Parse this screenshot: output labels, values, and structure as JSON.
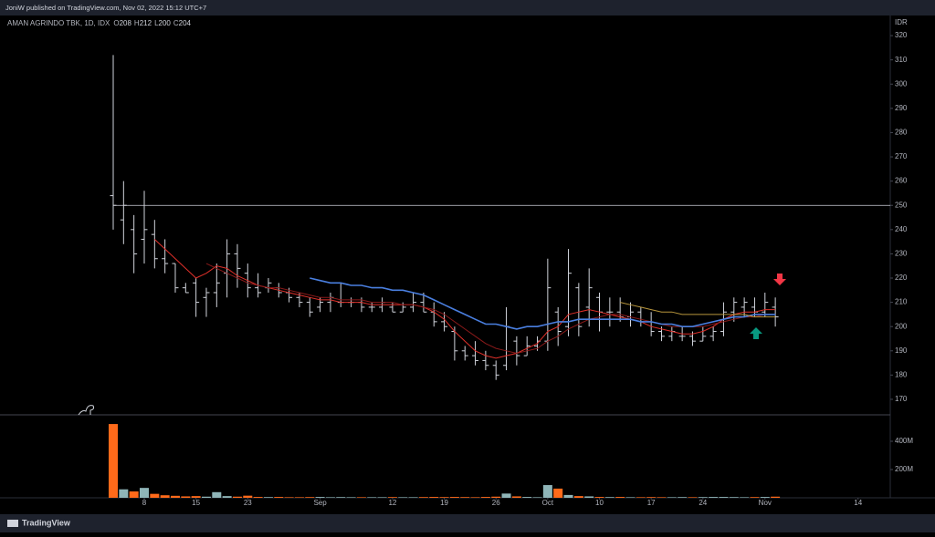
{
  "header": {
    "publisher": "JoniW published on TradingView.com, Nov 02, 2022 15:12 UTC+7",
    "footer_brand": "TradingView"
  },
  "chart_data": {
    "type": "ohlc",
    "title": "AMAN AGRINDO TBK, 1D, IDX",
    "legend_ohlc": [
      {
        "label": "O",
        "value": 208
      },
      {
        "label": "H",
        "value": 212
      },
      {
        "label": "L",
        "value": 200
      },
      {
        "label": "C",
        "value": 204
      }
    ],
    "currency_label": "IDR",
    "bar_color": "#d1d4dc",
    "up_color": "#8fb5b8",
    "down_color": "#ff6a1a",
    "level_color": "#d1d4dc",
    "levels": [
      250
    ],
    "ylim": [
      163.6,
      328.3
    ],
    "yticks": [
      170,
      180,
      190,
      200,
      210,
      220,
      230,
      240,
      250,
      260,
      270,
      280,
      290,
      300,
      310,
      320
    ],
    "xticks": [
      {
        "value": 3,
        "label": "8"
      },
      {
        "value": 8,
        "label": "15"
      },
      {
        "value": 13,
        "label": "23"
      },
      {
        "value": 20,
        "label": "Sep"
      },
      {
        "value": 27,
        "label": "12"
      },
      {
        "value": 32,
        "label": "19"
      },
      {
        "value": 37,
        "label": "26"
      },
      {
        "value": 42,
        "label": "Oct"
      },
      {
        "value": 47,
        "label": "10"
      },
      {
        "value": 52,
        "label": "17"
      },
      {
        "value": 57,
        "label": "24"
      },
      {
        "value": 63,
        "label": "Nov"
      },
      {
        "value": 72,
        "label": "14"
      }
    ],
    "open": [
      254,
      244,
      240,
      236,
      238,
      228,
      226,
      216,
      218,
      212,
      214,
      222,
      230,
      222,
      216,
      216,
      216,
      214,
      212,
      210,
      208,
      210,
      210,
      210,
      210,
      208,
      208,
      208,
      206,
      208,
      210,
      206,
      202,
      198,
      190,
      188,
      186,
      184,
      184,
      194,
      188,
      192,
      194,
      206,
      200,
      216,
      208,
      212,
      206,
      206,
      204,
      206,
      202,
      198,
      196,
      196,
      196,
      194,
      196,
      198,
      206,
      208,
      208,
      206,
      208
    ],
    "high": [
      312,
      260,
      246,
      256,
      244,
      236,
      226,
      218,
      220,
      216,
      226,
      236,
      234,
      226,
      222,
      220,
      218,
      216,
      214,
      212,
      212,
      214,
      218,
      212,
      212,
      210,
      212,
      210,
      210,
      214,
      214,
      210,
      206,
      200,
      192,
      194,
      190,
      186,
      208,
      196,
      196,
      196,
      228,
      208,
      232,
      218,
      224,
      214,
      212,
      212,
      210,
      208,
      206,
      200,
      200,
      200,
      198,
      200,
      200,
      210,
      212,
      212,
      212,
      214,
      212
    ],
    "low": [
      240,
      234,
      222,
      226,
      224,
      222,
      214,
      214,
      204,
      204,
      208,
      212,
      216,
      212,
      212,
      214,
      212,
      210,
      208,
      204,
      206,
      206,
      208,
      208,
      206,
      206,
      206,
      206,
      206,
      206,
      206,
      200,
      198,
      186,
      186,
      184,
      182,
      178,
      182,
      184,
      188,
      190,
      190,
      192,
      196,
      196,
      200,
      198,
      200,
      202,
      200,
      200,
      196,
      194,
      194,
      194,
      192,
      194,
      194,
      196,
      202,
      204,
      204,
      204,
      200
    ],
    "close": [
      250,
      250,
      230,
      240,
      228,
      226,
      216,
      214,
      210,
      214,
      218,
      230,
      224,
      216,
      214,
      218,
      214,
      212,
      210,
      206,
      210,
      212,
      210,
      210,
      208,
      208,
      210,
      206,
      208,
      210,
      206,
      202,
      200,
      190,
      188,
      186,
      184,
      180,
      200,
      188,
      192,
      194,
      216,
      198,
      222,
      200,
      216,
      206,
      206,
      204,
      206,
      202,
      198,
      196,
      198,
      196,
      194,
      196,
      198,
      206,
      210,
      210,
      206,
      210,
      204
    ],
    "lines": [
      {
        "color": "#e0302a",
        "values": [
          null,
          null,
          null,
          null,
          236,
          232,
          228,
          224,
          220,
          222,
          225,
          224,
          221,
          219,
          217,
          216,
          215,
          214,
          213,
          212,
          211,
          211,
          210,
          210,
          210,
          209,
          209,
          209,
          209,
          209,
          208,
          206,
          203,
          198,
          194,
          190,
          188,
          187,
          188,
          189,
          191,
          193,
          198,
          200,
          205,
          206,
          207,
          206,
          205,
          204,
          203,
          202,
          200,
          199,
          198,
          197,
          197,
          198,
          200,
          203,
          205,
          206,
          206,
          207,
          207
        ]
      },
      {
        "color": "#8b1a1a",
        "values": [
          null,
          null,
          null,
          null,
          null,
          null,
          null,
          null,
          null,
          226,
          224,
          222,
          220,
          218,
          217,
          216,
          216,
          215,
          214,
          213,
          212,
          212,
          211,
          211,
          211,
          210,
          210,
          210,
          209,
          209,
          208,
          207,
          205,
          202,
          199,
          196,
          193,
          191,
          190,
          189,
          190,
          191,
          194,
          196,
          199,
          201,
          203,
          204,
          205,
          205,
          204,
          203,
          202,
          201,
          200,
          200,
          200,
          200,
          201,
          202,
          203,
          204,
          204,
          205,
          205
        ]
      },
      {
        "color": "#4a7fe0",
        "values": [
          null,
          null,
          null,
          null,
          null,
          null,
          null,
          null,
          null,
          null,
          null,
          null,
          null,
          null,
          null,
          null,
          null,
          null,
          null,
          220,
          219,
          218,
          218,
          217,
          217,
          216,
          216,
          215,
          215,
          214,
          213,
          211,
          209,
          207,
          205,
          203,
          201,
          201,
          200,
          199,
          200,
          200,
          201,
          202,
          202,
          203,
          203,
          203,
          203,
          203,
          203,
          202,
          202,
          201,
          201,
          200,
          200,
          201,
          202,
          203,
          204,
          204,
          205,
          205,
          205
        ]
      },
      {
        "color": "#b8963c",
        "values": [
          null,
          null,
          null,
          null,
          null,
          null,
          null,
          null,
          null,
          null,
          null,
          null,
          null,
          null,
          null,
          null,
          null,
          null,
          null,
          null,
          null,
          null,
          null,
          null,
          null,
          null,
          null,
          null,
          null,
          null,
          null,
          null,
          null,
          null,
          null,
          null,
          null,
          null,
          null,
          null,
          null,
          null,
          null,
          null,
          null,
          null,
          null,
          null,
          null,
          210,
          209,
          208,
          207,
          206,
          206,
          205,
          205,
          205,
          205,
          205,
          205,
          205,
          204,
          204,
          204
        ]
      }
    ],
    "volume": [
      522,
      60,
      45,
      70,
      28,
      18,
      14,
      10,
      12,
      8,
      40,
      12,
      8,
      15,
      6,
      5,
      6,
      4,
      4,
      5,
      6,
      4,
      5,
      4,
      4,
      4,
      4,
      5,
      4,
      4,
      5,
      6,
      5,
      6,
      5,
      4,
      6,
      8,
      30,
      10,
      6,
      4,
      90,
      65,
      20,
      12,
      10,
      6,
      5,
      6,
      4,
      4,
      5,
      4,
      4,
      5,
      4,
      5,
      6,
      6,
      5,
      4,
      5,
      6,
      8
    ],
    "volume_ylim": [
      0,
      587
    ],
    "volume_ticks": [
      {
        "value": 200,
        "label": "200M"
      },
      {
        "value": 400,
        "label": "400M"
      }
    ]
  }
}
